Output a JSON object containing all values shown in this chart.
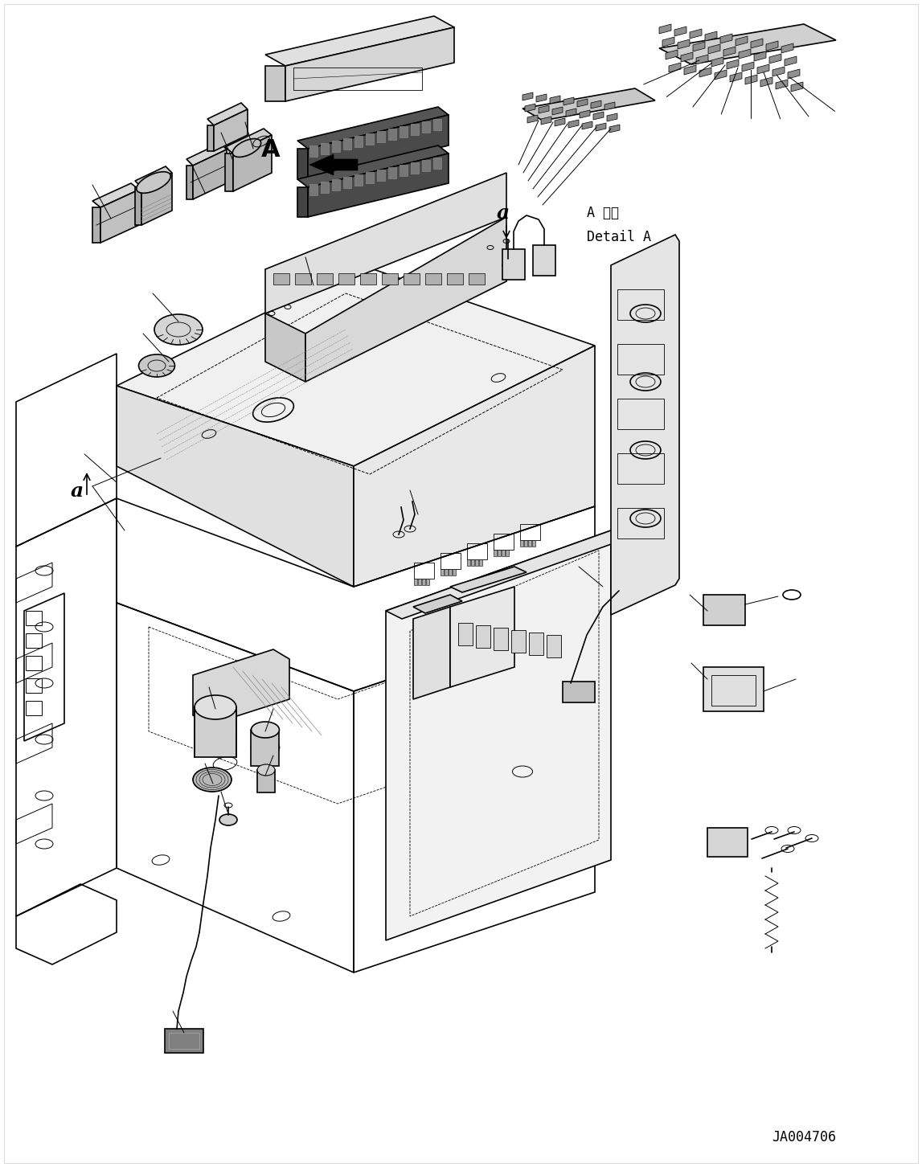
{
  "figure_id": "JA004706",
  "background_color": "#ffffff",
  "line_color": "#000000",
  "figsize": [
    11.47,
    14.52
  ],
  "dpi": 100,
  "labels": {
    "detail_a_jp": "A 詳細",
    "detail_a_en": "Detail A",
    "label_a_main": "a",
    "label_a_inset": "a",
    "label_A_arrow": "A",
    "figure_id": "JA004706"
  },
  "font_sizes": {
    "label_large": 18,
    "label_medium": 14,
    "label_small": 11,
    "figid": 12
  }
}
